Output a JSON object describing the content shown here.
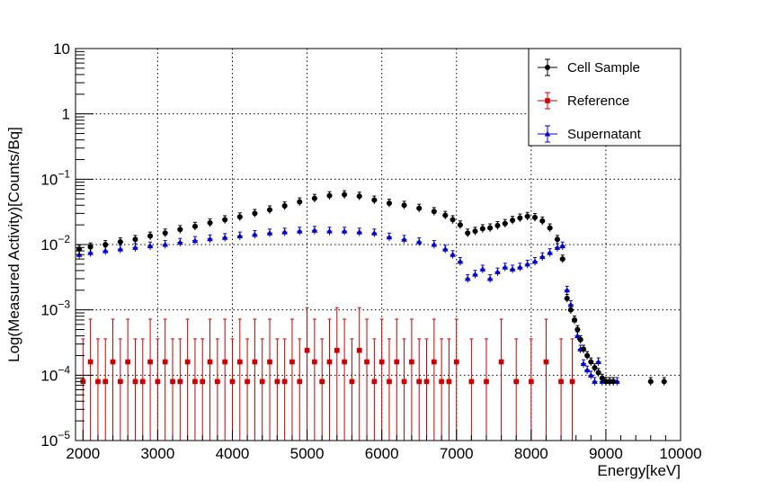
{
  "chart_data": {
    "type": "scatter",
    "title": "",
    "xlabel": "Energy[keV]",
    "ylabel": "Log(Measured Activity)[Counts/Bq]",
    "xlim": [
      1900,
      10000
    ],
    "ylim": [
      1e-05,
      10
    ],
    "yscale": "log",
    "grid": true,
    "legend_position": "top-right",
    "x_ticks": [
      "2000",
      "3000",
      "4000",
      "5000",
      "6000",
      "7000",
      "8000",
      "9000",
      "10000"
    ],
    "y_ticks": [
      {
        "base": "10",
        "exp": "−5"
      },
      {
        "base": "10",
        "exp": "−4"
      },
      {
        "base": "10",
        "exp": "−3"
      },
      {
        "base": "10",
        "exp": "−2"
      },
      {
        "base": "10",
        "exp": "−1"
      },
      {
        "base": "1",
        "exp": ""
      },
      {
        "base": "10",
        "exp": ""
      }
    ],
    "series": [
      {
        "name": "Cell Sample",
        "color": "#000000",
        "marker": "circle",
        "x": [
          1950,
          2100,
          2300,
          2500,
          2700,
          2900,
          3100,
          3300,
          3500,
          3700,
          3900,
          4100,
          4300,
          4500,
          4700,
          4900,
          5100,
          5300,
          5500,
          5700,
          5900,
          6100,
          6300,
          6500,
          6700,
          6850,
          6950,
          7050,
          7150,
          7250,
          7350,
          7450,
          7550,
          7650,
          7750,
          7850,
          7950,
          8050,
          8150,
          8250,
          8350,
          8420,
          8480,
          8530,
          8580,
          8620,
          8660,
          8700,
          8750,
          8800,
          8850,
          8900,
          8950,
          9000,
          9050,
          9100,
          9600,
          9780
        ],
        "y": [
          0.0085,
          0.0092,
          0.01,
          0.011,
          0.012,
          0.0135,
          0.015,
          0.017,
          0.019,
          0.0215,
          0.024,
          0.0265,
          0.03,
          0.034,
          0.039,
          0.045,
          0.051,
          0.056,
          0.058,
          0.055,
          0.048,
          0.043,
          0.04,
          0.036,
          0.032,
          0.028,
          0.024,
          0.02,
          0.015,
          0.016,
          0.0175,
          0.018,
          0.0195,
          0.021,
          0.0235,
          0.0255,
          0.027,
          0.026,
          0.023,
          0.018,
          0.012,
          0.006,
          0.0015,
          0.001,
          0.0007,
          0.0005,
          0.00035,
          0.00025,
          0.0002,
          0.00016,
          0.00013,
          0.00011,
          9e-05,
          8e-05,
          8e-05,
          8e-05,
          8e-05,
          8e-05
        ]
      },
      {
        "name": "Reference",
        "color": "#cc0000",
        "marker": "square",
        "x": [
          2000,
          2100,
          2200,
          2300,
          2400,
          2500,
          2600,
          2700,
          2800,
          2900,
          3000,
          3100,
          3200,
          3300,
          3400,
          3500,
          3600,
          3700,
          3800,
          3900,
          4000,
          4100,
          4200,
          4300,
          4400,
          4500,
          4600,
          4700,
          4800,
          4900,
          5000,
          5100,
          5200,
          5300,
          5400,
          5500,
          5600,
          5700,
          5800,
          5900,
          6000,
          6100,
          6200,
          6300,
          6400,
          6500,
          6600,
          6700,
          6800,
          6900,
          7000,
          7200,
          7400,
          7600,
          7800,
          8000,
          8200,
          8400,
          8550
        ],
        "y": [
          8e-05,
          0.00016,
          8e-05,
          8e-05,
          0.00016,
          8e-05,
          0.00016,
          8e-05,
          8e-05,
          0.00016,
          8e-05,
          0.00016,
          8e-05,
          8e-05,
          0.00016,
          8e-05,
          8e-05,
          0.00016,
          8e-05,
          0.00016,
          8e-05,
          0.00016,
          8e-05,
          0.00016,
          8e-05,
          0.00016,
          8e-05,
          8e-05,
          0.00016,
          8e-05,
          0.00024,
          0.00016,
          8e-05,
          0.00016,
          0.00024,
          0.00016,
          8e-05,
          0.00024,
          0.00016,
          8e-05,
          0.00016,
          8e-05,
          0.00016,
          8e-05,
          0.00016,
          8e-05,
          8e-05,
          0.00016,
          8e-05,
          8e-05,
          0.00016,
          8e-05,
          8e-05,
          0.00016,
          8e-05,
          8e-05,
          0.00016,
          8e-05,
          8e-05
        ]
      },
      {
        "name": "Supernatant",
        "color": "#0000cc",
        "marker": "triangle",
        "x": [
          1950,
          2100,
          2300,
          2500,
          2700,
          2900,
          3100,
          3300,
          3500,
          3700,
          3900,
          4100,
          4300,
          4500,
          4700,
          4900,
          5100,
          5300,
          5500,
          5700,
          5900,
          6100,
          6300,
          6500,
          6700,
          6850,
          6950,
          7050,
          7150,
          7250,
          7350,
          7450,
          7550,
          7650,
          7750,
          7850,
          7950,
          8050,
          8150,
          8250,
          8350,
          8420,
          8480,
          8530,
          8580,
          8620,
          8660,
          8700,
          8750,
          8800,
          8850,
          8900,
          8950,
          9050,
          9150
        ],
        "y": [
          0.007,
          0.0075,
          0.008,
          0.0085,
          0.009,
          0.0095,
          0.01,
          0.0108,
          0.0115,
          0.0122,
          0.0128,
          0.0135,
          0.0142,
          0.015,
          0.0155,
          0.016,
          0.0165,
          0.016,
          0.016,
          0.0155,
          0.015,
          0.013,
          0.012,
          0.011,
          0.01,
          0.0085,
          0.007,
          0.0055,
          0.003,
          0.0035,
          0.0042,
          0.003,
          0.0038,
          0.0045,
          0.0042,
          0.0045,
          0.005,
          0.0055,
          0.0065,
          0.0075,
          0.009,
          0.0095,
          0.002,
          0.0012,
          0.0007,
          0.0004,
          0.00025,
          0.00015,
          0.00012,
          0.0001,
          8e-05,
          0.00016,
          8e-05,
          8e-05,
          8e-05
        ]
      }
    ]
  }
}
